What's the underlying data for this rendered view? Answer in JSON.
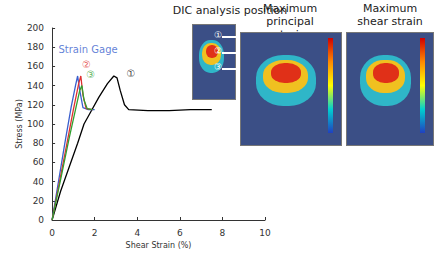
{
  "chart_data": {
    "type": "line",
    "xlabel": "Shear Strain (%)",
    "ylabel": "Stress (MPa)",
    "xlim": [
      0,
      10
    ],
    "xticks": [
      0,
      2,
      4,
      6,
      8,
      10
    ],
    "ylim": [
      0,
      200
    ],
    "yticks": [
      0,
      20,
      40,
      60,
      80,
      100,
      120,
      140,
      160,
      180,
      200
    ],
    "grid": false,
    "series": [
      {
        "color": "#000000",
        "x": [
          0,
          0.4,
          0.8,
          1.2,
          1.5,
          1.8,
          2.2,
          2.6,
          2.9,
          3.05,
          3.2,
          3.4,
          3.6,
          4.5,
          5.5,
          6.5,
          7.5
        ],
        "values": [
          0,
          30,
          55,
          80,
          100,
          112,
          128,
          142,
          150,
          148,
          135,
          120,
          115,
          114,
          114,
          115,
          115
        ]
      },
      {
        "color": "#3a5fcd",
        "x": [
          0,
          0.3,
          0.6,
          0.9,
          1.1,
          1.2,
          1.3,
          1.45,
          1.7,
          2.0
        ],
        "values": [
          0,
          40,
          80,
          118,
          140,
          150,
          135,
          117,
          115,
          115
        ]
      },
      {
        "color": "#e03030",
        "x": [
          0,
          0.35,
          0.7,
          1.0,
          1.25,
          1.35,
          1.45,
          1.6,
          1.9
        ],
        "values": [
          0,
          40,
          80,
          115,
          142,
          150,
          130,
          116,
          115
        ]
      },
      {
        "color": "#30a030",
        "x": [
          0,
          0.4,
          0.8,
          1.1,
          1.3,
          1.4,
          1.5,
          1.65,
          1.9
        ],
        "values": [
          0,
          42,
          85,
          115,
          135,
          140,
          125,
          116,
          115
        ]
      }
    ],
    "annotations": [
      {
        "text": "Strain Gage",
        "x": 0.3,
        "y": 178,
        "color": "#3a5fcd"
      },
      {
        "text": "②",
        "x": 1.4,
        "y": 162,
        "color": "#e03030"
      },
      {
        "text": "③",
        "x": 1.6,
        "y": 152,
        "color": "#30a030"
      },
      {
        "text": "①",
        "x": 3.5,
        "y": 153,
        "color": "#000000"
      }
    ]
  },
  "dic_title": "DIC analysis position",
  "dic_labels": [
    "①",
    "②",
    "③"
  ],
  "images": [
    {
      "title": "Maximum principal strain"
    },
    {
      "title": "Maximum shear strain"
    }
  ]
}
